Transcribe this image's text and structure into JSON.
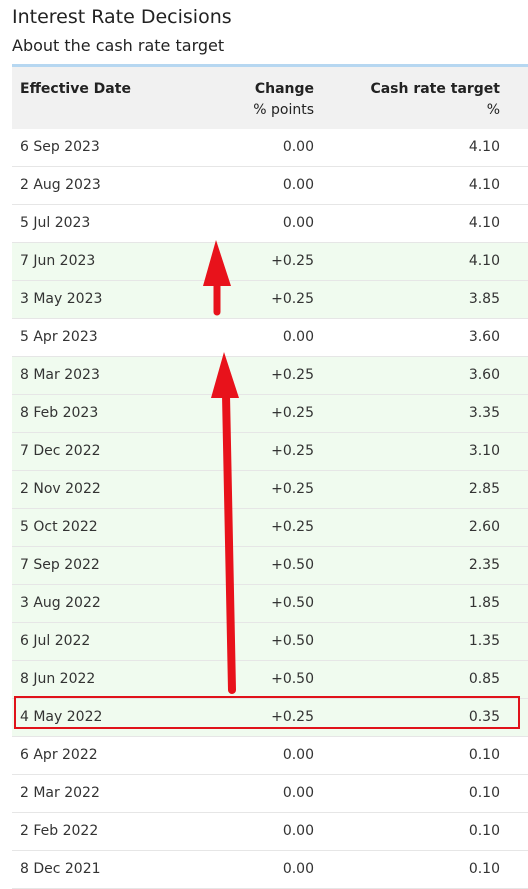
{
  "page": {
    "title": "Interest Rate Decisions",
    "subtitle": "About the cash rate target"
  },
  "table": {
    "headers": {
      "date": "Effective Date",
      "change": "Change",
      "change_unit": "% points",
      "rate": "Cash rate target",
      "rate_unit": "%"
    },
    "rows": [
      {
        "date": "6 Sep 2023",
        "change": "0.00",
        "rate": "4.10",
        "increase": false
      },
      {
        "date": "2 Aug 2023",
        "change": "0.00",
        "rate": "4.10",
        "increase": false
      },
      {
        "date": "5 Jul 2023",
        "change": "0.00",
        "rate": "4.10",
        "increase": false
      },
      {
        "date": "7 Jun 2023",
        "change": "+0.25",
        "rate": "4.10",
        "increase": true
      },
      {
        "date": "3 May 2023",
        "change": "+0.25",
        "rate": "3.85",
        "increase": true
      },
      {
        "date": "5 Apr 2023",
        "change": "0.00",
        "rate": "3.60",
        "increase": false
      },
      {
        "date": "8 Mar 2023",
        "change": "+0.25",
        "rate": "3.60",
        "increase": true
      },
      {
        "date": "8 Feb 2023",
        "change": "+0.25",
        "rate": "3.35",
        "increase": true
      },
      {
        "date": "7 Dec 2022",
        "change": "+0.25",
        "rate": "3.10",
        "increase": true
      },
      {
        "date": "2 Nov 2022",
        "change": "+0.25",
        "rate": "2.85",
        "increase": true
      },
      {
        "date": "5 Oct 2022",
        "change": "+0.25",
        "rate": "2.60",
        "increase": true
      },
      {
        "date": "7 Sep 2022",
        "change": "+0.50",
        "rate": "2.35",
        "increase": true
      },
      {
        "date": "3 Aug 2022",
        "change": "+0.50",
        "rate": "1.85",
        "increase": true
      },
      {
        "date": "6 Jul 2022",
        "change": "+0.50",
        "rate": "1.35",
        "increase": true
      },
      {
        "date": "8 Jun 2022",
        "change": "+0.50",
        "rate": "0.85",
        "increase": true
      },
      {
        "date": "4 May 2022",
        "change": "+0.25",
        "rate": "0.35",
        "increase": true,
        "highlighted": true
      },
      {
        "date": "6 Apr 2022",
        "change": "0.00",
        "rate": "0.10",
        "increase": false
      },
      {
        "date": "2 Mar 2022",
        "change": "0.00",
        "rate": "0.10",
        "increase": false
      },
      {
        "date": "2 Feb 2022",
        "change": "0.00",
        "rate": "0.10",
        "increase": false
      },
      {
        "date": "8 Dec 2021",
        "change": "0.00",
        "rate": "0.10",
        "increase": false
      }
    ]
  },
  "annotations": {
    "arrow_color": "#e8121b",
    "highlight_color": "#e0121a"
  }
}
